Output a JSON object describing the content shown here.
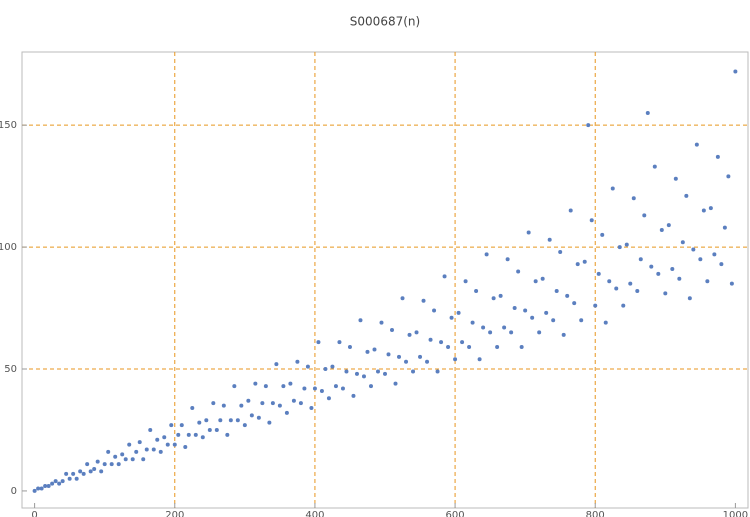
{
  "chart_data": {
    "type": "scatter",
    "title": "S000687(n)",
    "color": "#5b7fbf",
    "xlim": [
      -18,
      1018
    ],
    "ylim": [
      -7,
      180
    ],
    "xticks": [
      0,
      200,
      400,
      600,
      800,
      1000
    ],
    "yticks": [
      0,
      50,
      100,
      150
    ],
    "xgrid": [
      200,
      400,
      600,
      800
    ],
    "ygrid": [
      50,
      100,
      150
    ],
    "grid_color": "#e8961f",
    "x": [
      0,
      5,
      10,
      15,
      20,
      25,
      30,
      35,
      40,
      45,
      50,
      55,
      60,
      65,
      70,
      75,
      80,
      85,
      90,
      95,
      100,
      105,
      110,
      115,
      120,
      125,
      130,
      135,
      140,
      145,
      150,
      155,
      160,
      165,
      170,
      175,
      180,
      185,
      190,
      195,
      200,
      205,
      210,
      215,
      220,
      225,
      230,
      235,
      240,
      245,
      250,
      255,
      260,
      265,
      270,
      275,
      280,
      285,
      290,
      295,
      300,
      305,
      310,
      315,
      320,
      325,
      330,
      335,
      340,
      345,
      350,
      355,
      360,
      365,
      370,
      375,
      380,
      385,
      390,
      395,
      400,
      405,
      410,
      415,
      420,
      425,
      430,
      435,
      440,
      445,
      450,
      455,
      460,
      465,
      470,
      475,
      480,
      485,
      490,
      495,
      500,
      505,
      510,
      515,
      520,
      525,
      530,
      535,
      540,
      545,
      550,
      555,
      560,
      565,
      570,
      575,
      580,
      585,
      590,
      595,
      600,
      605,
      610,
      615,
      620,
      625,
      630,
      635,
      640,
      645,
      650,
      655,
      660,
      665,
      670,
      675,
      680,
      685,
      690,
      695,
      700,
      705,
      710,
      715,
      720,
      725,
      730,
      735,
      740,
      745,
      750,
      755,
      760,
      765,
      770,
      775,
      780,
      785,
      790,
      795,
      800,
      805,
      810,
      815,
      820,
      825,
      830,
      835,
      840,
      845,
      850,
      855,
      860,
      865,
      870,
      875,
      880,
      885,
      890,
      895,
      900,
      905,
      910,
      915,
      920,
      925,
      930,
      935,
      940,
      945,
      950,
      955,
      960,
      965,
      970,
      975,
      980,
      985,
      990,
      995,
      1000
    ],
    "values": [
      0,
      1,
      1,
      2,
      2,
      3,
      4,
      3,
      4,
      7,
      5,
      7,
      5,
      8,
      7,
      11,
      8,
      9,
      12,
      8,
      11,
      16,
      11,
      14,
      11,
      15,
      13,
      19,
      13,
      16,
      20,
      13,
      17,
      25,
      17,
      21,
      16,
      22,
      19,
      27,
      19,
      23,
      27,
      18,
      23,
      34,
      23,
      28,
      22,
      29,
      25,
      36,
      25,
      29,
      35,
      23,
      29,
      43,
      29,
      35,
      27,
      37,
      31,
      44,
      30,
      36,
      43,
      28,
      36,
      52,
      35,
      43,
      32,
      44,
      37,
      53,
      36,
      42,
      51,
      34,
      42,
      61,
      41,
      50,
      38,
      51,
      43,
      61,
      42,
      49,
      59,
      39,
      48,
      70,
      47,
      57,
      43,
      58,
      49,
      69,
      48,
      56,
      66,
      44,
      55,
      79,
      53,
      64,
      49,
      65,
      55,
      78,
      53,
      62,
      74,
      49,
      61,
      88,
      59,
      71,
      54,
      73,
      61,
      86,
      59,
      69,
      82,
      54,
      67,
      97,
      65,
      79,
      59,
      80,
      67,
      95,
      65,
      75,
      90,
      59,
      74,
      106,
      71,
      86,
      65,
      87,
      73,
      103,
      70,
      82,
      98,
      64,
      80,
      115,
      77,
      93,
      70,
      94,
      150,
      111,
      76,
      89,
      105,
      69,
      86,
      124,
      83,
      100,
      76,
      101,
      85,
      120,
      82,
      95,
      113,
      155,
      92,
      133,
      89,
      107,
      81,
      109,
      91,
      128,
      87,
      102,
      121,
      79,
      99,
      142,
      95,
      115,
      86,
      116,
      97,
      137,
      93,
      108,
      129,
      85,
      172
    ]
  }
}
